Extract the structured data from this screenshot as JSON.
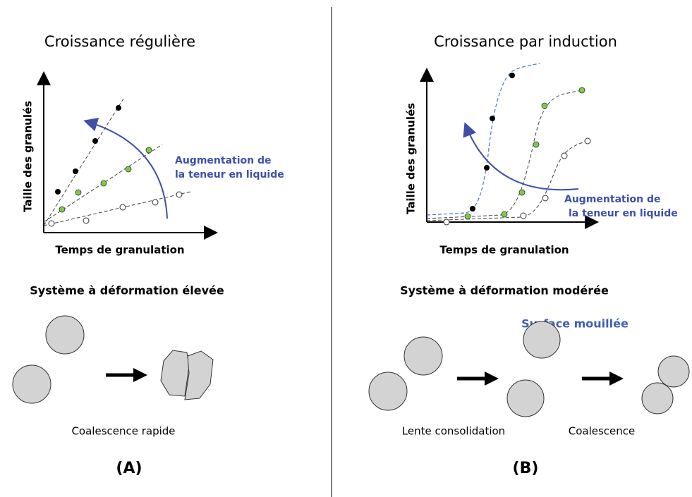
{
  "panels": [
    {
      "title": "Croissance régulière",
      "y_axis_label": "Taille des granulés",
      "x_axis_label": "Temps de granulation",
      "arrow_label": [
        "Augmentation de",
        "la teneur en liquide"
      ],
      "system": "Système à déformation élevée",
      "process_labels": [
        "Coalescence rapide"
      ],
      "panel_label": "(A)"
    },
    {
      "title": "Croissance par induction",
      "y_axis_label": "Taille des granulés",
      "x_axis_label": "Temps de granulation",
      "arrow_label": [
        "Augmentation de",
        "la teneur en liquide"
      ],
      "system": "Système à déformation modérée",
      "annotation": "Surface mouillée",
      "process_labels": [
        "Lente consolidation",
        "Coalescence"
      ],
      "panel_label": "(B)"
    }
  ]
}
